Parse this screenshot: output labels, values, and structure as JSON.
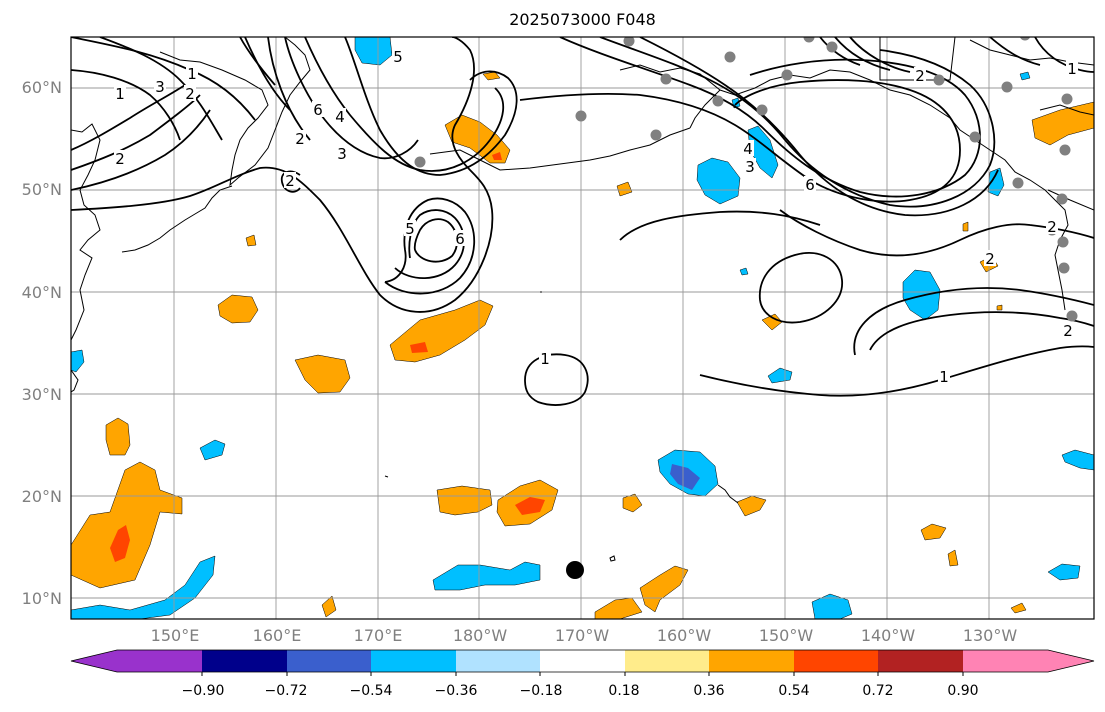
{
  "title": "2025073000 F048",
  "map": {
    "lat_labels": [
      "60°N",
      "50°N",
      "40°N",
      "30°N",
      "20°N",
      "10°N"
    ],
    "lon_labels": [
      "150°E",
      "160°E",
      "170°E",
      "180°W",
      "170°W",
      "160°W",
      "150°W",
      "140°W",
      "130°W"
    ],
    "contour_labels": [
      "1",
      "3",
      "2",
      "1",
      "2",
      "5",
      "4",
      "6",
      "3",
      "2",
      "2",
      "5",
      "6",
      "1",
      "2",
      "4",
      "3",
      "6",
      "2",
      "2",
      "1",
      "2",
      "1"
    ],
    "anomaly_color_positive": "#ffa500",
    "anomaly_color_strong_positive": "#ff4500",
    "anomaly_color_negative": "#00bfff",
    "anomaly_color_strong_negative": "#3a5fcd"
  },
  "colorbar": {
    "tick_labels": [
      "−0.90",
      "−0.72",
      "−0.54",
      "−0.36",
      "−0.18",
      "0.18",
      "0.36",
      "0.54",
      "0.72",
      "0.90"
    ],
    "colors": [
      "#9932cc",
      "#9932cc",
      "#00008b",
      "#3a5fcd",
      "#00bfff",
      "#b0e2ff",
      "#ffffff",
      "#ffec8b",
      "#ffa500",
      "#ff4500",
      "#b22222",
      "#ff83b4",
      "#ff83b4"
    ]
  }
}
